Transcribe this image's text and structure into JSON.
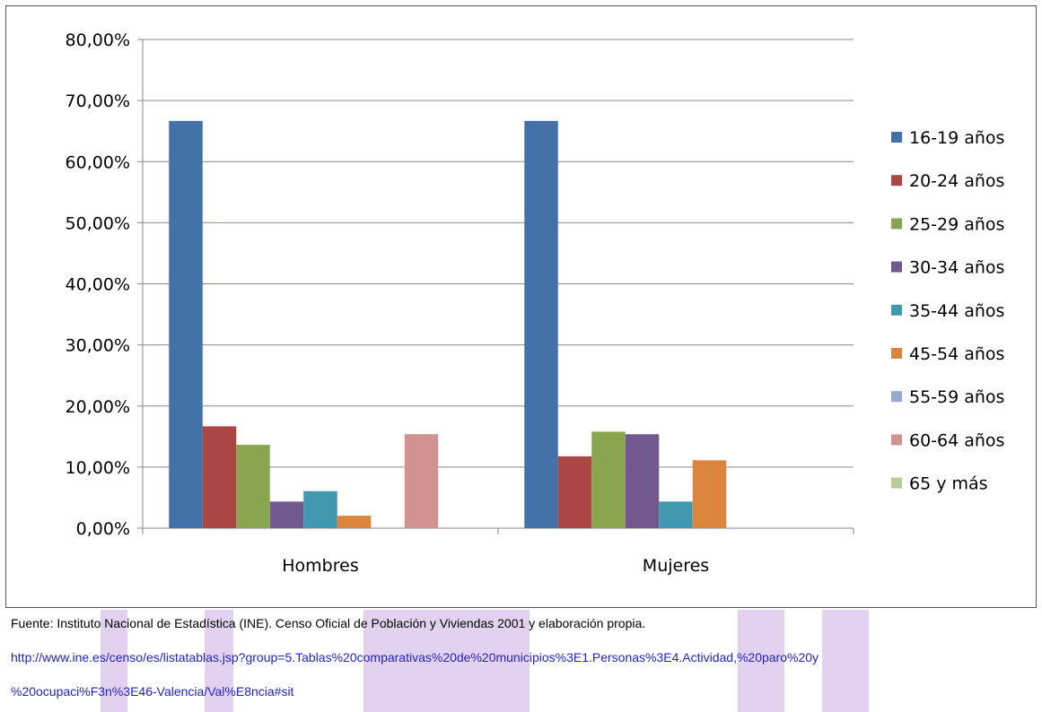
{
  "chart_data": {
    "type": "bar",
    "categories": [
      "Hombres",
      "Mujeres"
    ],
    "series": [
      {
        "name": "16-19 años",
        "color": "#4470a8",
        "values": [
          66.67,
          66.67
        ]
      },
      {
        "name": "20-24 años",
        "color": "#aa4644",
        "values": [
          16.67,
          11.76
        ]
      },
      {
        "name": "25-29 años",
        "color": "#89a54e",
        "values": [
          13.64,
          15.79
        ]
      },
      {
        "name": "30-34 años",
        "color": "#71588f",
        "values": [
          4.35,
          15.38
        ]
      },
      {
        "name": "35-44 años",
        "color": "#4198af",
        "values": [
          6.06,
          4.35
        ]
      },
      {
        "name": "45-54 años",
        "color": "#db843d",
        "values": [
          2.04,
          11.11
        ]
      },
      {
        "name": "55-59 años",
        "color": "#93a9cf",
        "values": [
          0,
          0
        ]
      },
      {
        "name": "60-64 años",
        "color": "#d19392",
        "values": [
          15.38,
          0
        ]
      },
      {
        "name": "65 y más",
        "color": "#b9cd96",
        "values": [
          0,
          0
        ]
      }
    ],
    "yticks": [
      "0,00%",
      "10,00%",
      "20,00%",
      "30,00%",
      "40,00%",
      "50,00%",
      "60,00%",
      "70,00%",
      "80,00%"
    ],
    "ylim": [
      0,
      80
    ],
    "grid": true,
    "legend": "right",
    "title": "",
    "xlabel": "",
    "ylabel": ""
  },
  "source": {
    "text": "Fuente: Instituto Nacional de Estadística (INE). Censo Oficial de Población y Viviendas 2001 y elaboración propia.",
    "url_line1": "http://www.ine.es/censo/es/listatablas.jsp?group=5.Tablas%20comparativas%20de%20municipios%3E1.Personas%3E4.Actividad,%20paro%20y",
    "url_line2": "%20ocupaci%F3n%3E46-Valencia/Val%E8ncia#sit"
  }
}
